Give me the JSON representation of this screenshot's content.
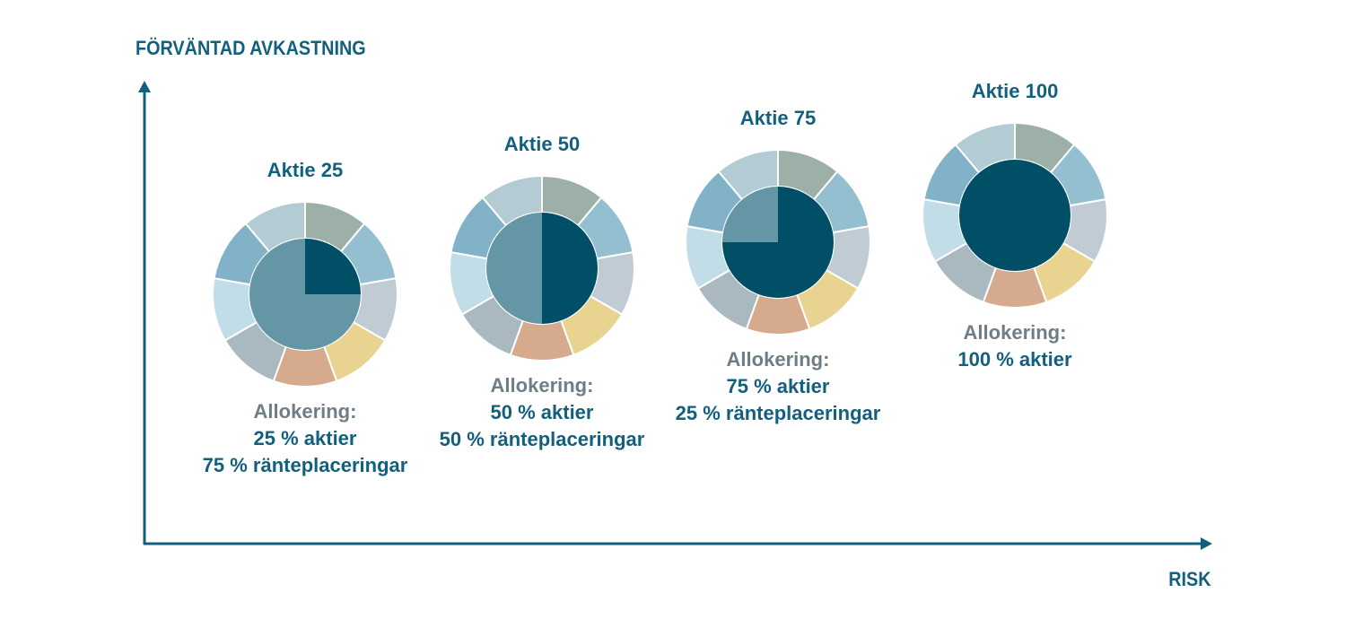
{
  "axes": {
    "y_label": "FÖRVÄNTAD AVKASTNING",
    "x_label": "RISK"
  },
  "colors": {
    "axis": "#12607e",
    "title": "#12607e",
    "allocation_label": "#6f7e86",
    "equity": "#004f67",
    "fixed_income": "#6596a5",
    "ring": [
      "#9db0a8",
      "#93bfd0",
      "#c0cbd3",
      "#e8d390",
      "#d5aa8d",
      "#aab8bf",
      "#c0dde8",
      "#82b2c7",
      "#b3cbd2"
    ]
  },
  "chart_data": {
    "type": "pie",
    "xlabel": "RISK",
    "ylabel": "FÖRVÄNTAD AVKASTNING",
    "series_names": [
      "aktier",
      "ränteplaceringar"
    ],
    "ring_segments": 9,
    "funds": [
      {
        "name": "Aktie 25",
        "equity_pct": 25,
        "fixed_income_pct": 75,
        "alloc_label": "Allokering:",
        "alloc_lines": [
          "25 % aktier",
          "75 % ränteplaceringar"
        ]
      },
      {
        "name": "Aktie 50",
        "equity_pct": 50,
        "fixed_income_pct": 50,
        "alloc_label": "Allokering:",
        "alloc_lines": [
          "50 % aktier",
          "50 % ränteplaceringar"
        ]
      },
      {
        "name": "Aktie 75",
        "equity_pct": 75,
        "fixed_income_pct": 25,
        "alloc_label": "Allokering:",
        "alloc_lines": [
          "75 % aktier",
          "25 % ränteplaceringar"
        ]
      },
      {
        "name": "Aktie 100",
        "equity_pct": 100,
        "fixed_income_pct": 0,
        "alloc_label": "Allokering:",
        "alloc_lines": [
          "100 % aktier"
        ]
      }
    ]
  }
}
